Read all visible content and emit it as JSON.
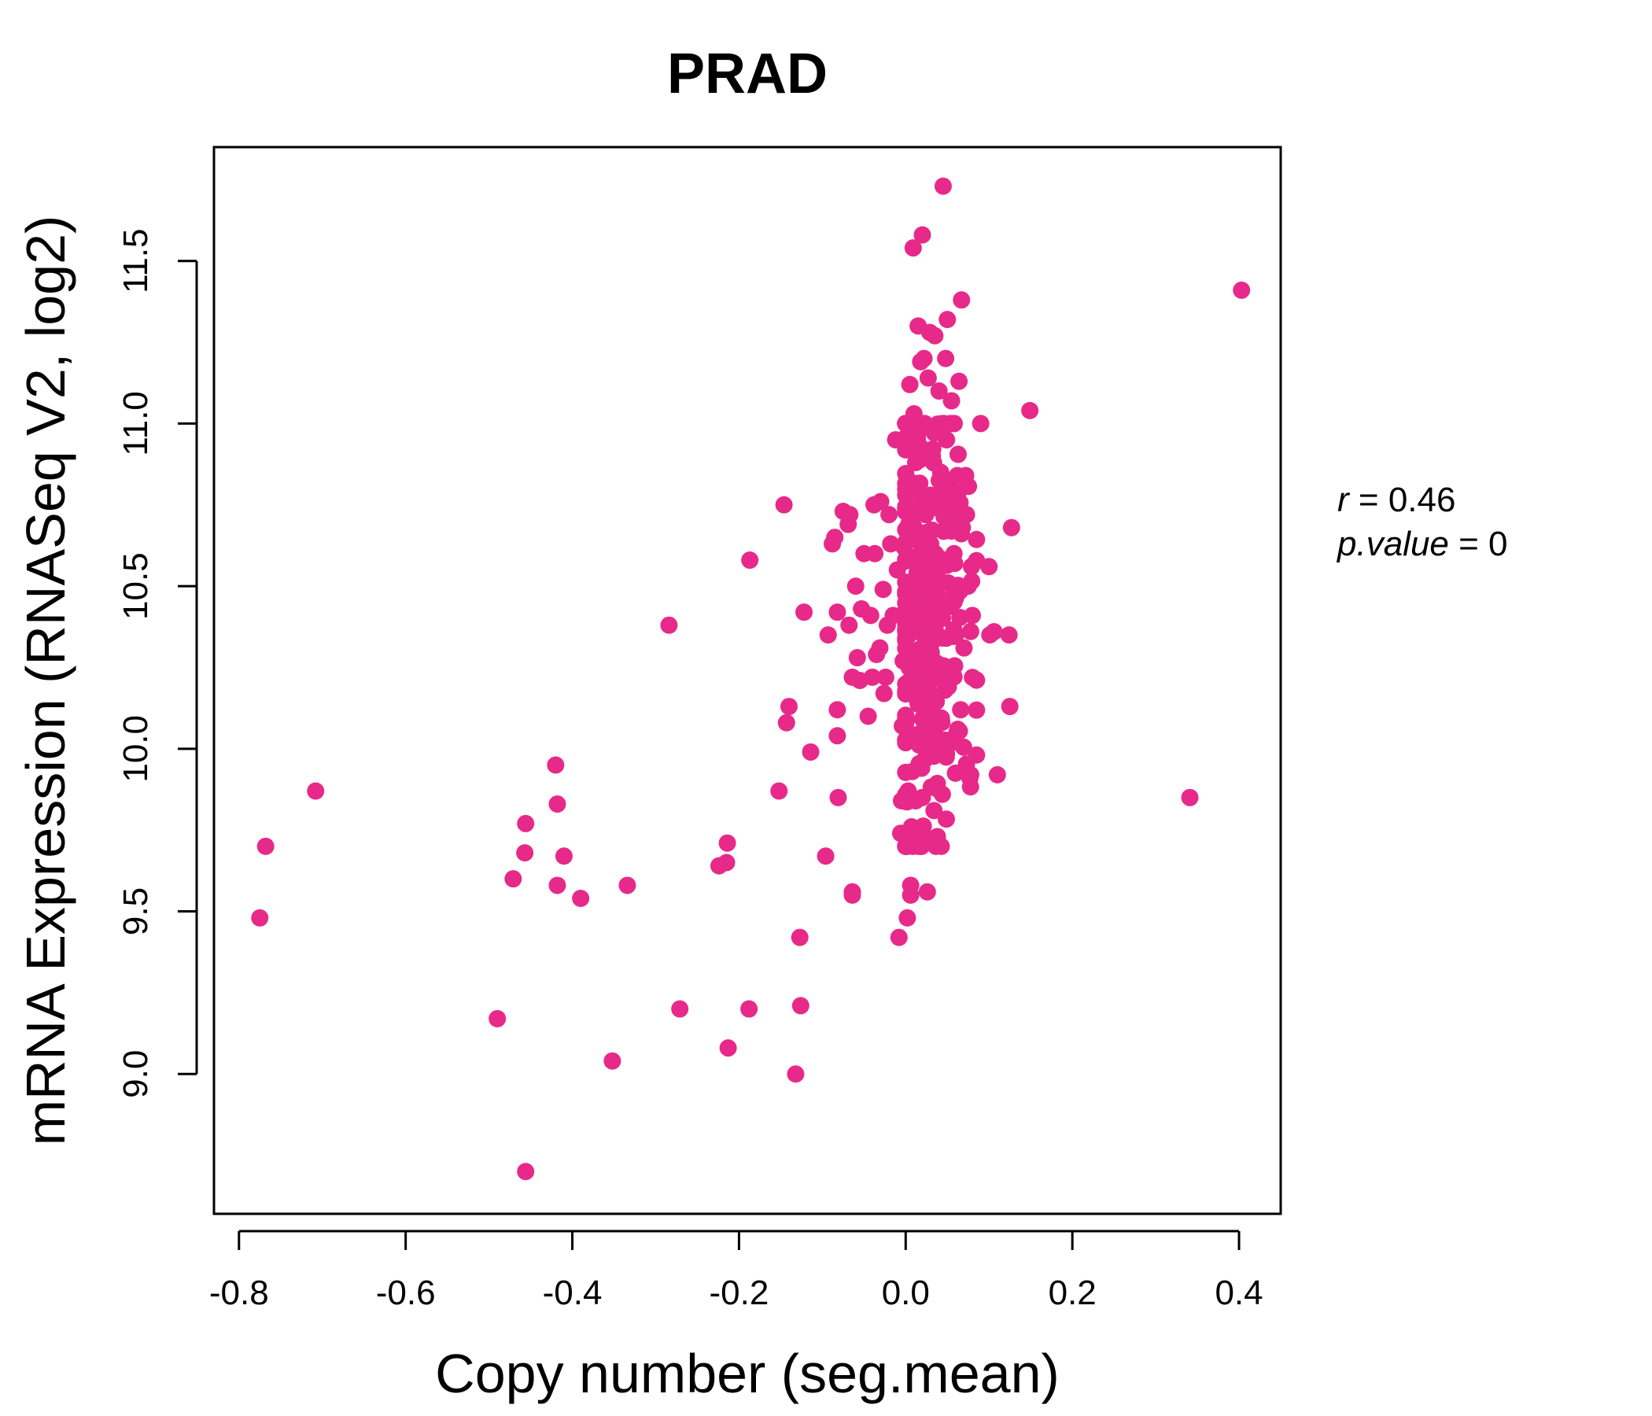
{
  "chart_data": {
    "type": "scatter",
    "title": "PRAD",
    "xlabel": "Copy number (seg.mean)",
    "ylabel": "mRNA Expression (RNASeq V2, log2)",
    "xlim": [
      -0.83,
      0.45
    ],
    "ylim": [
      8.57,
      11.85
    ],
    "x_ticks": [
      "-0.8",
      "-0.6",
      "-0.4",
      "-0.2",
      "0.0",
      "0.2",
      "0.4"
    ],
    "x_tick_values": [
      -0.8,
      -0.6,
      -0.4,
      -0.2,
      0.0,
      0.2,
      0.4
    ],
    "y_ticks": [
      "9.0",
      "9.5",
      "10.0",
      "10.5",
      "11.0",
      "11.5"
    ],
    "y_tick_values": [
      9.0,
      9.5,
      10.0,
      10.5,
      11.0,
      11.5
    ],
    "grid": false,
    "point_color": "#E7298A",
    "stats": {
      "r_symbol": "r",
      "r_value": "0.46",
      "p_symbol": "p.value",
      "p_value": "0"
    },
    "points": [
      [
        -0.775,
        9.48
      ],
      [
        -0.768,
        9.7
      ],
      [
        -0.708,
        9.87
      ],
      [
        -0.49,
        9.17
      ],
      [
        -0.471,
        9.6
      ],
      [
        -0.457,
        9.68
      ],
      [
        -0.456,
        9.77
      ],
      [
        -0.456,
        8.7
      ],
      [
        -0.42,
        9.95
      ],
      [
        -0.418,
        9.83
      ],
      [
        -0.418,
        9.58
      ],
      [
        -0.41,
        9.67
      ],
      [
        -0.39,
        9.54
      ],
      [
        -0.352,
        9.04
      ],
      [
        -0.334,
        9.58
      ],
      [
        -0.284,
        10.38
      ],
      [
        -0.271,
        9.2
      ],
      [
        -0.224,
        9.64
      ],
      [
        -0.215,
        9.65
      ],
      [
        -0.214,
        9.71
      ],
      [
        -0.213,
        9.08
      ],
      [
        -0.187,
        10.58
      ],
      [
        -0.188,
        9.2
      ],
      [
        -0.152,
        9.87
      ],
      [
        -0.146,
        10.75
      ],
      [
        -0.143,
        10.08
      ],
      [
        -0.14,
        10.13
      ],
      [
        -0.132,
        9.0
      ],
      [
        -0.126,
        9.21
      ],
      [
        -0.127,
        9.42
      ],
      [
        -0.122,
        10.42
      ],
      [
        -0.114,
        9.99
      ],
      [
        -0.096,
        9.67
      ],
      [
        -0.093,
        10.35
      ],
      [
        -0.088,
        10.63
      ],
      [
        -0.085,
        10.65
      ],
      [
        -0.082,
        10.42
      ],
      [
        -0.082,
        10.12
      ],
      [
        -0.082,
        10.04
      ],
      [
        -0.081,
        9.85
      ],
      [
        -0.075,
        10.73
      ],
      [
        -0.069,
        10.69
      ],
      [
        -0.068,
        10.38
      ],
      [
        -0.067,
        10.72
      ],
      [
        -0.064,
        9.55
      ],
      [
        -0.064,
        9.56
      ],
      [
        -0.064,
        10.22
      ],
      [
        -0.06,
        10.5
      ],
      [
        -0.058,
        10.28
      ],
      [
        -0.055,
        10.21
      ],
      [
        -0.053,
        10.43
      ],
      [
        -0.05,
        10.6
      ],
      [
        -0.045,
        10.1
      ],
      [
        -0.042,
        10.41
      ],
      [
        -0.04,
        10.22
      ],
      [
        -0.038,
        10.75
      ],
      [
        -0.037,
        10.6
      ],
      [
        -0.035,
        10.29
      ],
      [
        -0.031,
        10.31
      ],
      [
        -0.03,
        10.76
      ],
      [
        -0.027,
        10.49
      ],
      [
        -0.026,
        10.17
      ],
      [
        -0.024,
        10.22
      ],
      [
        -0.022,
        10.38
      ],
      [
        -0.02,
        10.72
      ],
      [
        -0.018,
        10.63
      ],
      [
        -0.015,
        10.41
      ],
      [
        -0.012,
        10.95
      ],
      [
        -0.01,
        10.55
      ],
      [
        -0.008,
        9.42
      ],
      [
        -0.006,
        9.74
      ],
      [
        -0.005,
        9.84
      ],
      [
        -0.004,
        10.07
      ],
      [
        -0.003,
        10.27
      ],
      [
        -0.002,
        10.62
      ],
      [
        0.0,
        10.78
      ],
      [
        0.001,
        9.7
      ],
      [
        0.002,
        9.48
      ],
      [
        0.003,
        9.87
      ],
      [
        0.004,
        10.35
      ],
      [
        0.005,
        11.12
      ],
      [
        0.006,
        9.58
      ],
      [
        0.006,
        9.55
      ],
      [
        0.007,
        9.76
      ],
      [
        0.008,
        9.93
      ],
      [
        0.009,
        11.54
      ],
      [
        0.01,
        11.03
      ],
      [
        0.01,
        10.68
      ],
      [
        0.011,
        10.45
      ],
      [
        0.012,
        9.84
      ],
      [
        0.012,
        10.88
      ],
      [
        0.013,
        10.52
      ],
      [
        0.014,
        10.15
      ],
      [
        0.015,
        11.3
      ],
      [
        0.016,
        9.72
      ],
      [
        0.017,
        10.93
      ],
      [
        0.018,
        11.19
      ],
      [
        0.019,
        10.05
      ],
      [
        0.02,
        11.58
      ],
      [
        0.02,
        9.85
      ],
      [
        0.021,
        10.31
      ],
      [
        0.022,
        11.2
      ],
      [
        0.023,
        10.99
      ],
      [
        0.024,
        10.72
      ],
      [
        0.025,
        10.47
      ],
      [
        0.026,
        9.56
      ],
      [
        0.027,
        11.14
      ],
      [
        0.028,
        10.12
      ],
      [
        0.029,
        11.28
      ],
      [
        0.03,
        10.63
      ],
      [
        0.031,
        9.72
      ],
      [
        0.032,
        10.9
      ],
      [
        0.033,
        10.39
      ],
      [
        0.034,
        9.81
      ],
      [
        0.035,
        11.27
      ],
      [
        0.036,
        10.23
      ],
      [
        0.037,
        10.78
      ],
      [
        0.038,
        9.73
      ],
      [
        0.039,
        10.55
      ],
      [
        0.04,
        11.1
      ],
      [
        0.041,
        10.02
      ],
      [
        0.042,
        10.85
      ],
      [
        0.043,
        10.44
      ],
      [
        0.044,
        9.86
      ],
      [
        0.045,
        11.73
      ],
      [
        0.046,
        10.67
      ],
      [
        0.047,
        10.18
      ],
      [
        0.048,
        11.2
      ],
      [
        0.049,
        10.95
      ],
      [
        0.05,
        11.32
      ],
      [
        0.051,
        10.51
      ],
      [
        0.052,
        10.24
      ],
      [
        0.053,
        10.82
      ],
      [
        0.055,
        11.07
      ],
      [
        0.056,
        10.02
      ],
      [
        0.058,
        10.6
      ],
      [
        0.06,
        10.35
      ],
      [
        0.062,
        10.84
      ],
      [
        0.064,
        11.13
      ],
      [
        0.066,
        10.12
      ],
      [
        0.067,
        11.38
      ],
      [
        0.068,
        10.68
      ],
      [
        0.07,
        10.31
      ],
      [
        0.072,
        10.84
      ],
      [
        0.073,
        10.72
      ],
      [
        0.075,
        10.5
      ],
      [
        0.077,
        9.91
      ],
      [
        0.078,
        9.92
      ],
      [
        0.079,
        10.56
      ],
      [
        0.08,
        10.41
      ],
      [
        0.09,
        11.0
      ],
      [
        0.1,
        10.56
      ],
      [
        0.101,
        10.35
      ],
      [
        0.106,
        10.36
      ],
      [
        0.11,
        9.92
      ],
      [
        0.124,
        10.35
      ],
      [
        0.125,
        10.13
      ],
      [
        0.127,
        10.68
      ],
      [
        0.149,
        11.04
      ],
      [
        0.341,
        9.85
      ],
      [
        0.403,
        11.41
      ]
    ],
    "cluster": {
      "x_center": 0.025,
      "x_spread": 0.028,
      "y_center": 10.45,
      "y_spread": 0.38,
      "count": 260
    }
  }
}
